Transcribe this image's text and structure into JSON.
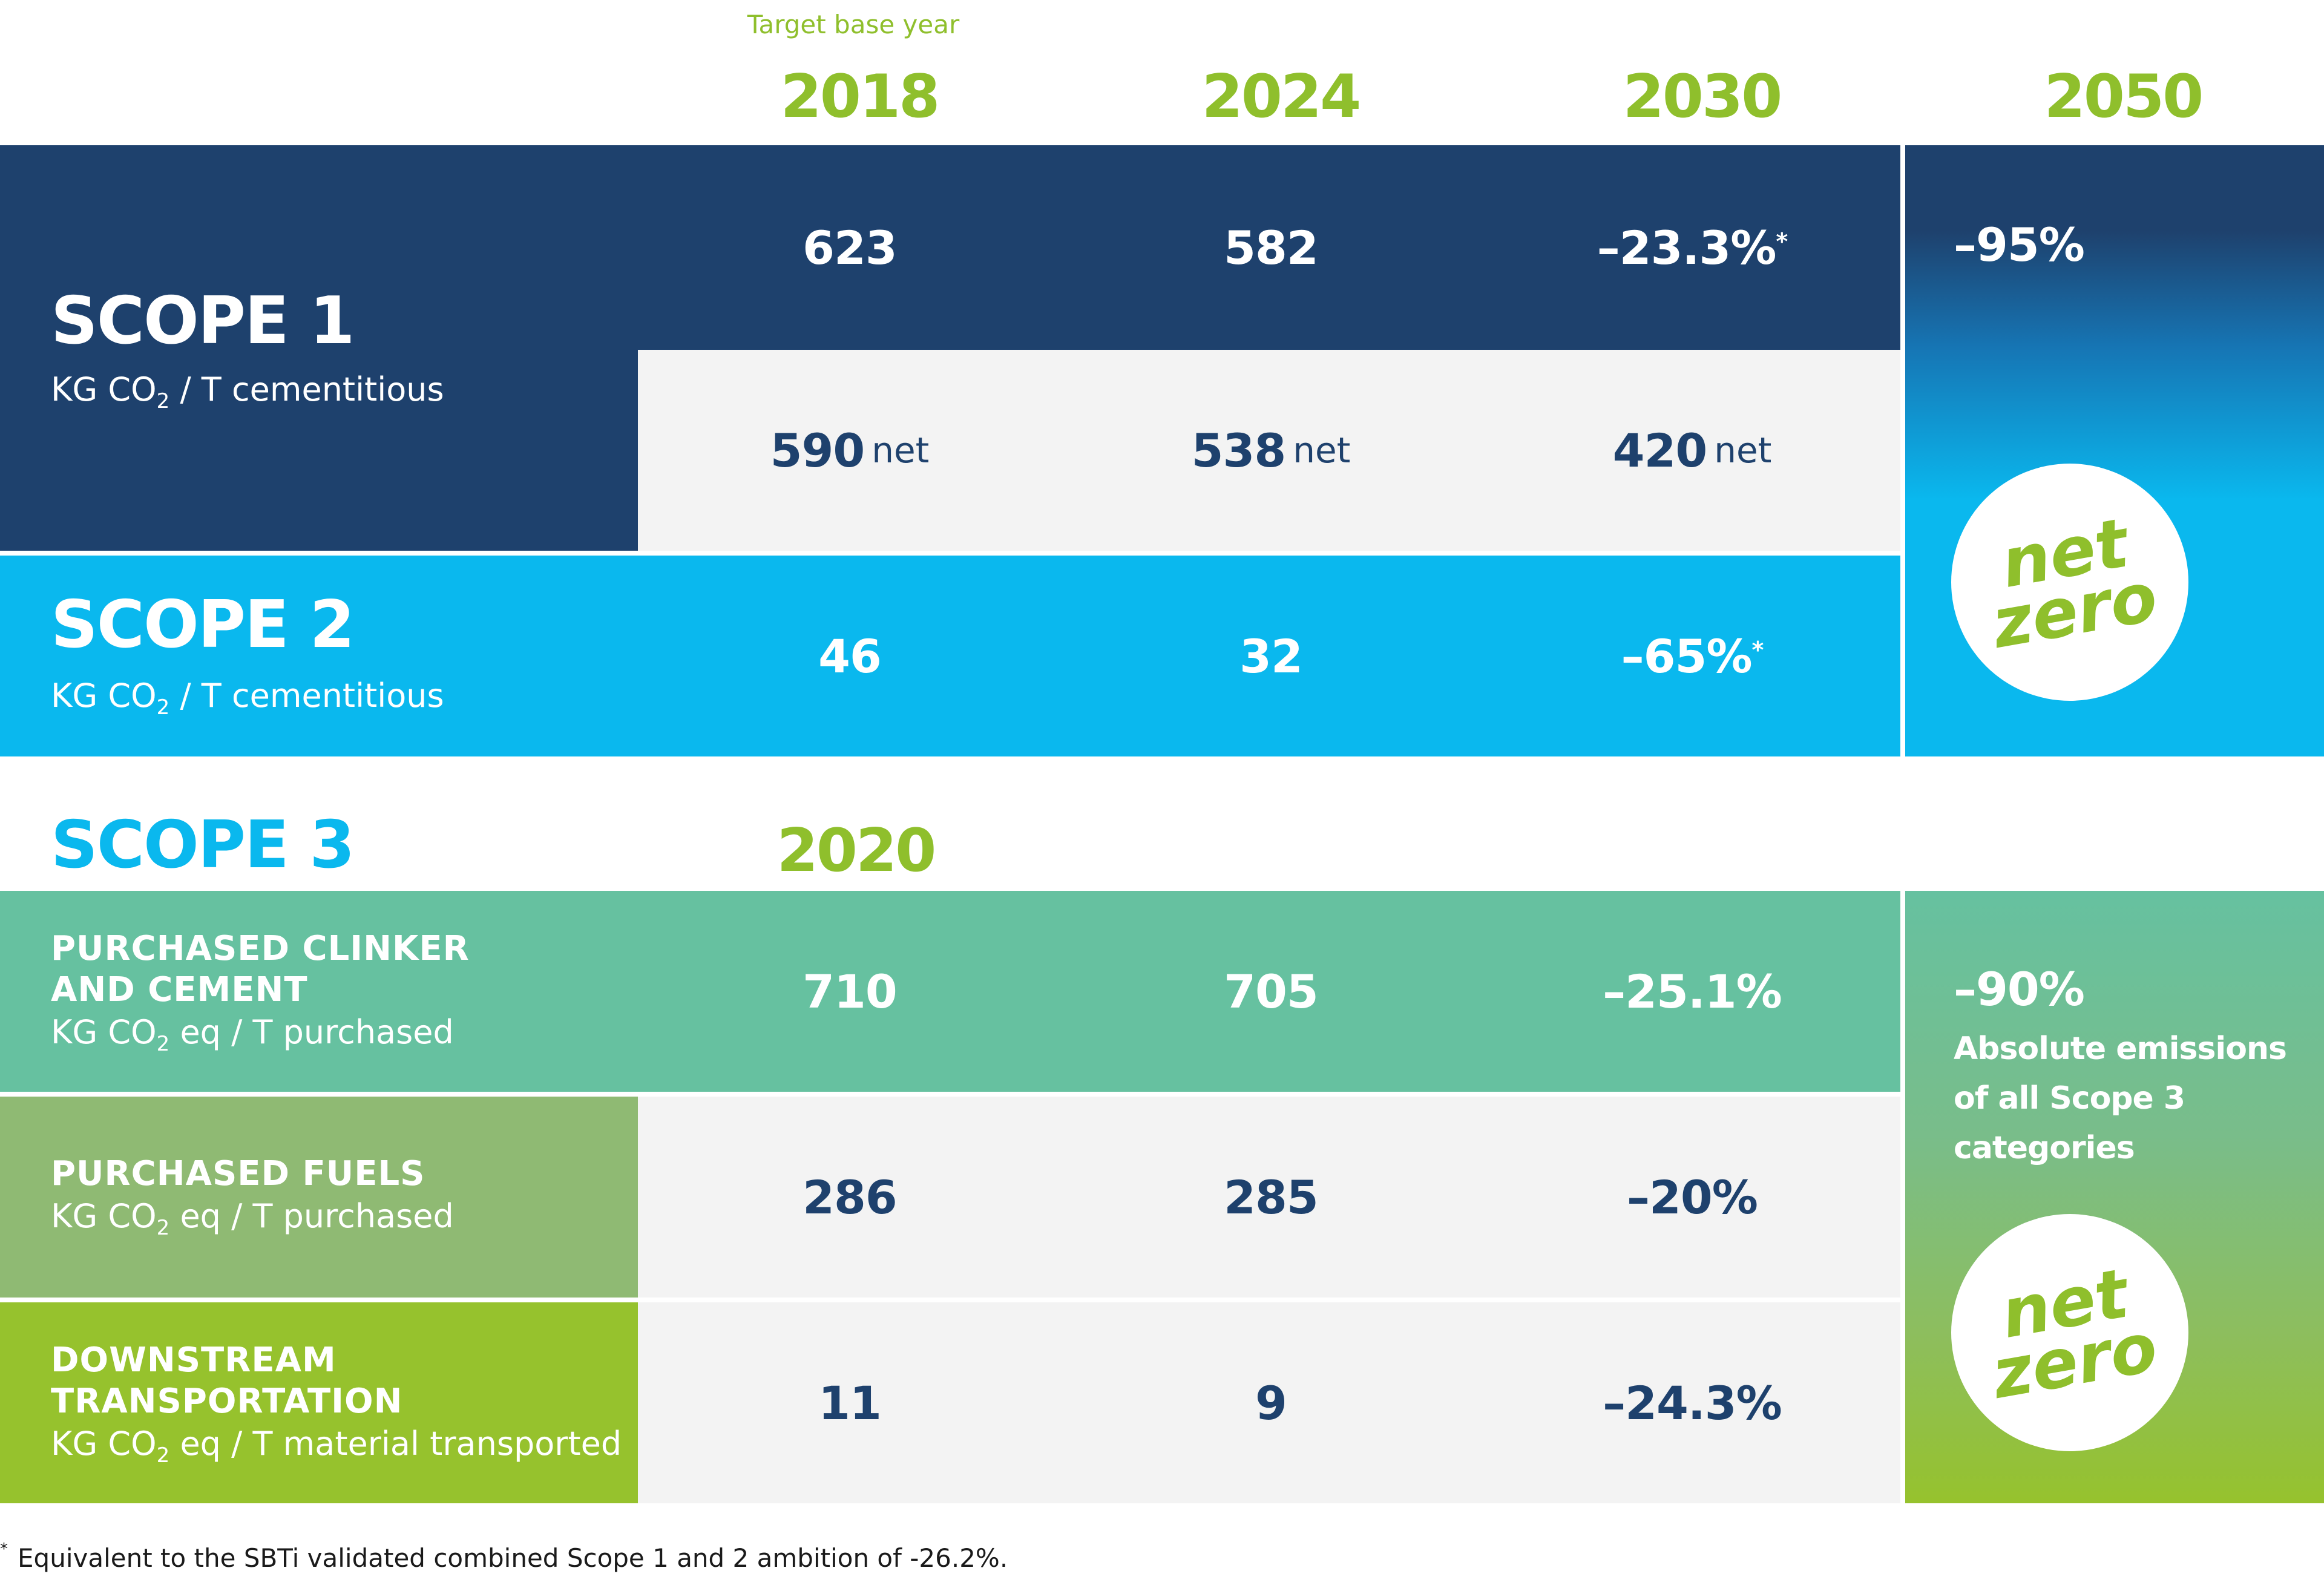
{
  "header": {
    "base_year_label": "Target base year",
    "years": [
      "2018",
      "2024",
      "2030",
      "2050"
    ]
  },
  "scope1": {
    "title": "SCOPE 1",
    "unit_prefix": "KG CO",
    "unit_sub": "2",
    "unit_suffix": " / T cementitious",
    "gross": [
      "623",
      "582",
      "–23.3%"
    ],
    "gross_2030_asterisk": "*",
    "net": [
      {
        "value": "590",
        "suffix": "net"
      },
      {
        "value": "538",
        "suffix": "net"
      },
      {
        "value": "420",
        "suffix": "net"
      }
    ],
    "target_2050": "–95%"
  },
  "scope2": {
    "title": "SCOPE 2",
    "unit_prefix": "KG CO",
    "unit_sub": "2",
    "unit_suffix": " / T cementitious",
    "values": [
      "46",
      "32",
      "–65%"
    ],
    "value_2030_asterisk": "*"
  },
  "net_zero_badge": {
    "line1": "net",
    "line2": "zero"
  },
  "scope3": {
    "title": "SCOPE 3",
    "base_year": "2020",
    "categories": [
      {
        "title_line1": "PURCHASED CLINKER",
        "title_line2": "AND CEMENT",
        "unit_prefix": "KG CO",
        "unit_sub": "2",
        "unit_suffix": " eq / T purchased",
        "values": [
          "710",
          "705",
          "–25.1%"
        ]
      },
      {
        "title_line1": "PURCHASED FUELS",
        "title_line2": "",
        "unit_prefix": "KG CO",
        "unit_sub": "2",
        "unit_suffix": " eq / T purchased",
        "values": [
          "286",
          "285",
          "–20%"
        ]
      },
      {
        "title_line1": "DOWNSTREAM",
        "title_line2": "TRANSPORTATION",
        "unit_prefix": "KG CO",
        "unit_sub": "2",
        "unit_suffix": " eq / T material transported",
        "values": [
          "11",
          "9",
          "–24.3%"
        ]
      }
    ],
    "target_2050": "–90%",
    "target_2050_desc_line1": "Absolute emissions",
    "target_2050_desc_line2": "of all Scope 3",
    "target_2050_desc_line3": "categories"
  },
  "footnote": {
    "marker": "*",
    "text": "Equivalent to the SBTi validated combined Scope 1 and 2 ambition of -26.2%."
  },
  "colors": {
    "scope1_dark_blue": "#1e416d",
    "scope2_cyan": "#0ab8ee",
    "year_green": "#8fbf2c",
    "clinker_teal": "#66c1a0",
    "fuels_olive": "#8fba73",
    "transport_lime": "#96c22d",
    "light_grey": "#f3f3f3"
  }
}
